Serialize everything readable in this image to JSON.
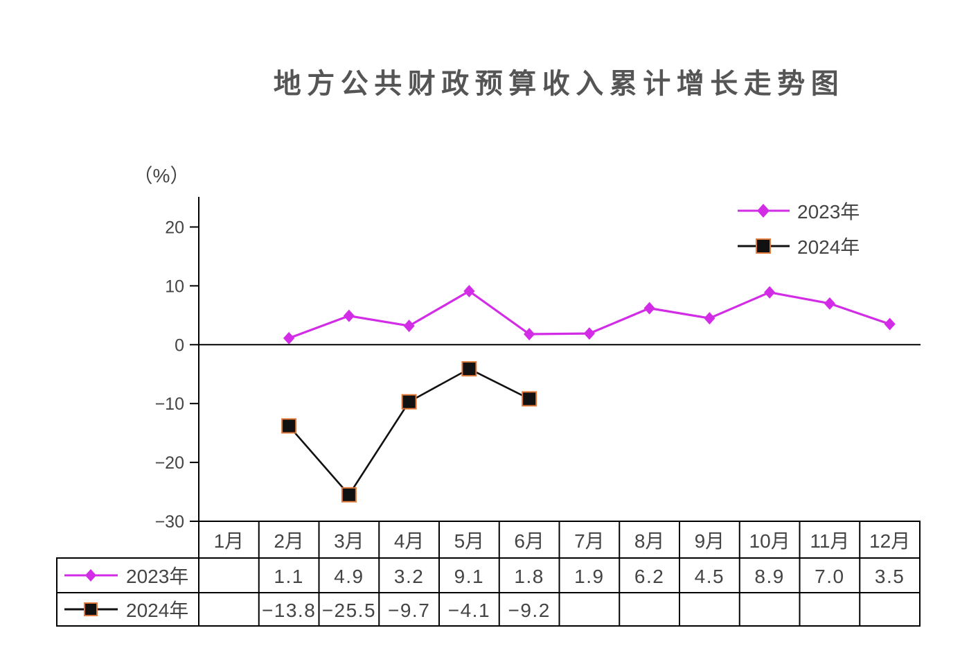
{
  "chart_data": {
    "type": "line",
    "title": "地方公共财政预算收入累计增长走势图",
    "ylabel": "（%）",
    "xlabel": "",
    "categories": [
      "1月",
      "2月",
      "3月",
      "4月",
      "5月",
      "6月",
      "7月",
      "8月",
      "9月",
      "10月",
      "11月",
      "12月"
    ],
    "ylim": [
      -30,
      25
    ],
    "yticks": [
      20,
      10,
      0,
      -10,
      -20,
      -30
    ],
    "ytick_labels": [
      "20",
      "10",
      "0",
      "−10",
      "−20",
      "−30"
    ],
    "grid": false,
    "legend": "top-right",
    "series": [
      {
        "name": "2023年",
        "values": [
          null,
          1.1,
          4.9,
          3.2,
          9.1,
          1.8,
          1.9,
          6.2,
          4.5,
          8.9,
          7.0,
          3.5
        ],
        "color": "#D22CE6",
        "marker": "diamond"
      },
      {
        "name": "2024年",
        "values": [
          null,
          -13.8,
          -25.5,
          -9.7,
          -4.1,
          -9.2,
          null,
          null,
          null,
          null,
          null,
          null
        ],
        "color": "#111111",
        "marker": "square",
        "marker_edge_color": "#E0783A"
      }
    ],
    "table": {
      "rows": [
        {
          "cells": [
            null,
            "1.1",
            "4.9",
            "3.2",
            "9.1",
            "1.8",
            "1.9",
            "6.2",
            "4.5",
            "8.9",
            "7.0",
            "3.5"
          ]
        },
        {
          "cells": [
            null,
            "−13.8",
            "−25.5",
            "−9.7",
            "−4.1",
            "−9.2",
            null,
            null,
            null,
            null,
            null,
            null
          ]
        }
      ]
    }
  }
}
